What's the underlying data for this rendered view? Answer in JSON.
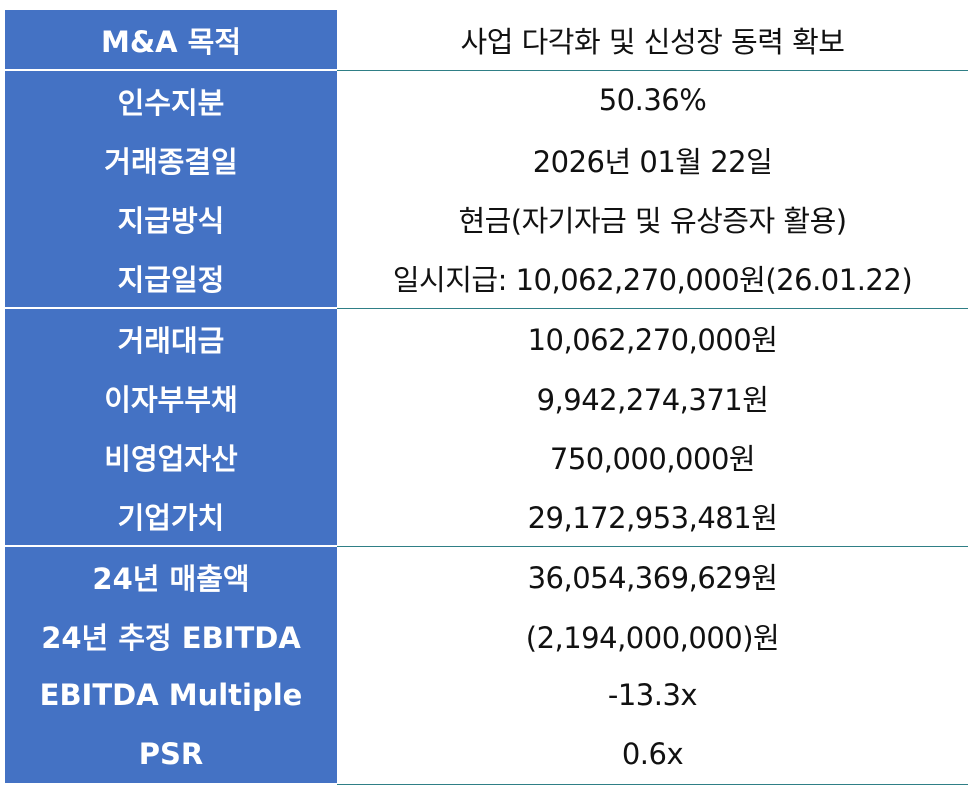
{
  "table": {
    "rows": [
      [
        "M&A 목적",
        "사업 다각화 및 신성장 동력 확보"
      ],
      [
        "인수지분",
        "50.36%"
      ],
      [
        "거래종결일",
        "2026년 01월 22일"
      ],
      [
        "지급방식",
        "현금(자기자금 및 유상증자 활용)"
      ],
      [
        "지급일정",
        "일시지급: 10,062,270,000원(26.01.22)"
      ],
      [
        "거래대금",
        "10,062,270,000원"
      ],
      [
        "이자부부채",
        "9,942,274,371원"
      ],
      [
        "비영업자산",
        "750,000,000원"
      ],
      [
        "기업가치",
        "29,172,953,481원"
      ],
      [
        "24년 매출액",
        "36,054,369,629원"
      ],
      [
        "24년 추정 EBITDA",
        "(2,194,000,000)원"
      ],
      [
        "EBITDA Multiple",
        "-13.3x"
      ],
      [
        "PSR",
        "0.6x"
      ]
    ]
  }
}
